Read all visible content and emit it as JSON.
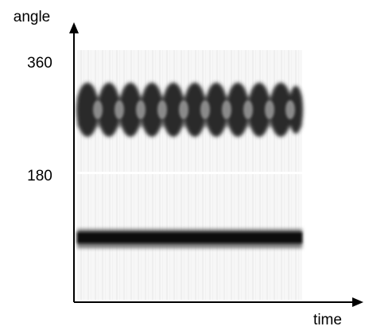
{
  "chart_data": {
    "type": "image",
    "xlabel": "time",
    "ylabel": "angle",
    "ylim": [
      -20,
      423
    ],
    "yticks": [
      180,
      360
    ]
  }
}
